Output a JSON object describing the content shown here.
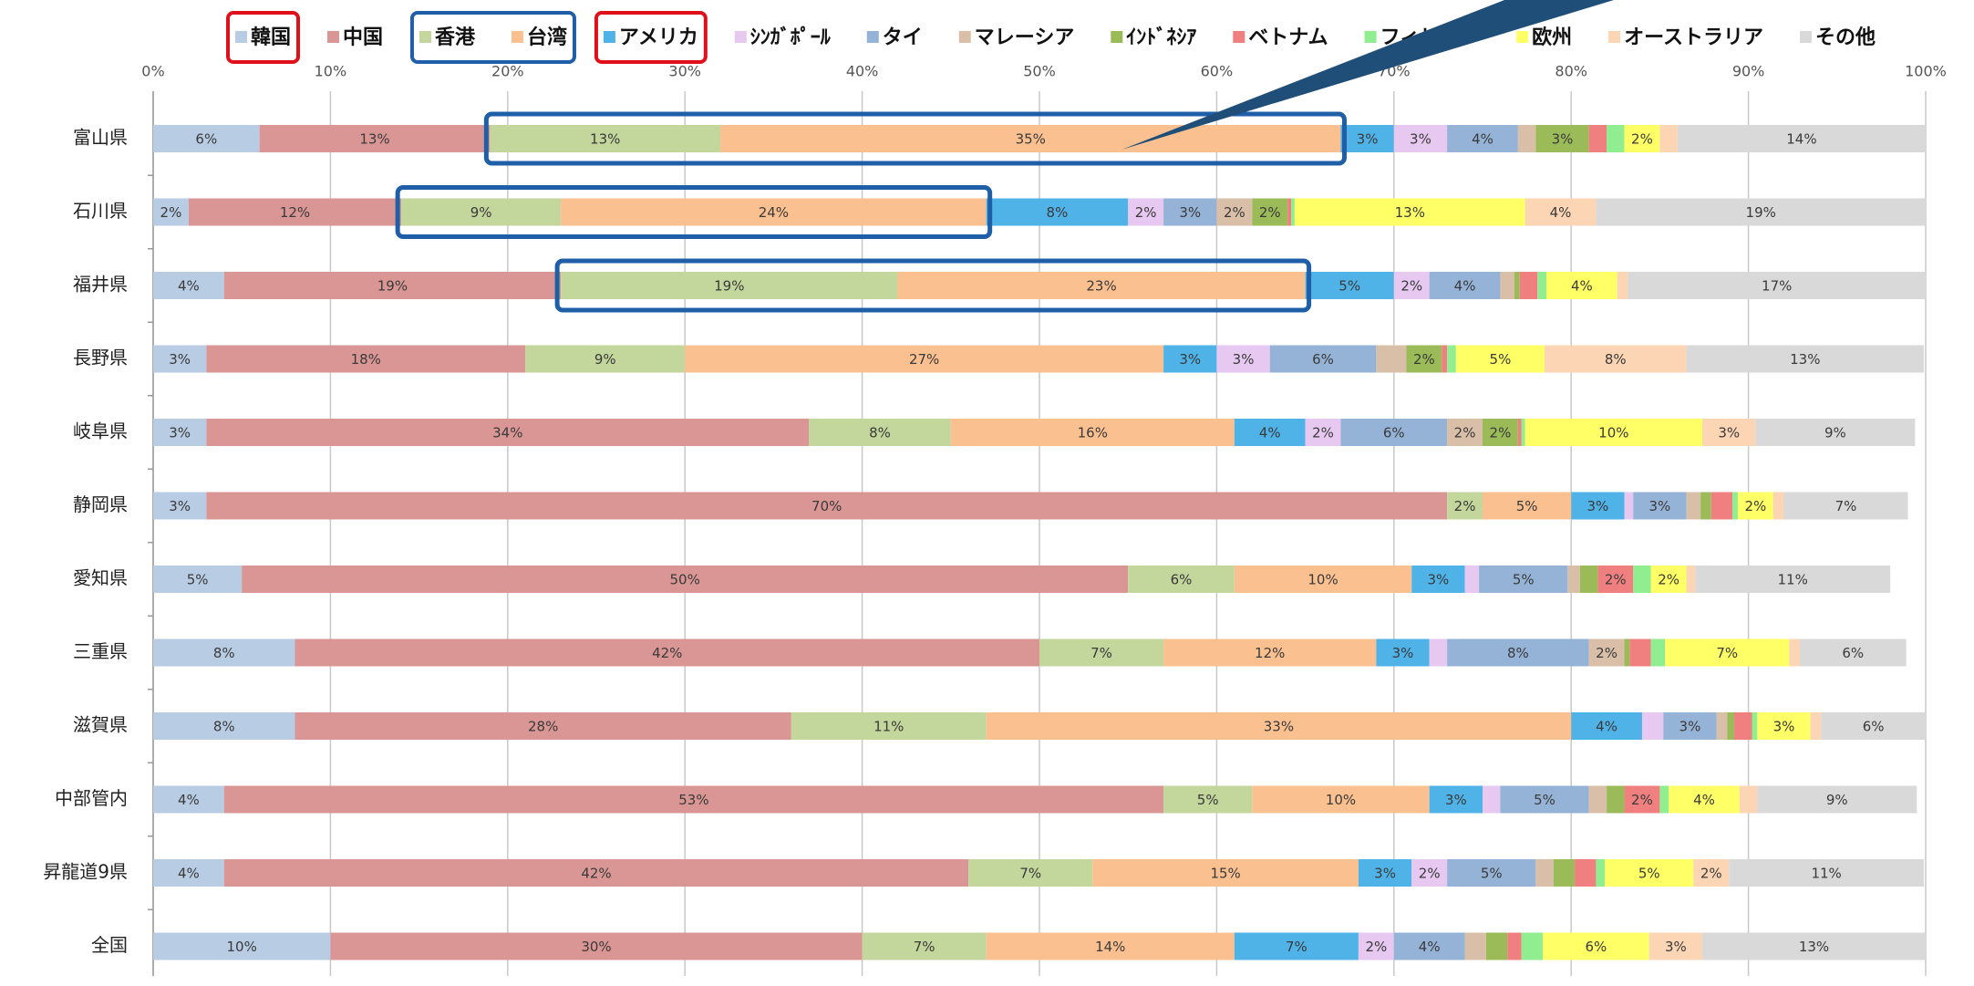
{
  "chart_data": {
    "type": "stacked_bar_horizontal",
    "categories": [
      "富山県",
      "石川県",
      "福井県",
      "長野県",
      "岐阜県",
      "静岡県",
      "愛知県",
      "三重県",
      "滋賀県",
      "中部管内",
      "昇龍道9県",
      "全国"
    ],
    "xlim": [
      0,
      100
    ],
    "xticks": [
      {
        "value": 0,
        "label": "0%"
      },
      {
        "value": 10,
        "label": "10%"
      },
      {
        "value": 20,
        "label": "20%"
      },
      {
        "value": 30,
        "label": "30%"
      },
      {
        "value": 40,
        "label": "40%"
      },
      {
        "value": 50,
        "label": "50%"
      },
      {
        "value": 60,
        "label": "60%"
      },
      {
        "value": 70,
        "label": "70%"
      },
      {
        "value": 80,
        "label": "80%"
      },
      {
        "value": 90,
        "label": "90%"
      },
      {
        "value": 100,
        "label": "100%"
      }
    ],
    "grid": true,
    "legend": "top",
    "series": [
      {
        "name": "韓国",
        "color": "#b8cce4",
        "values": [
          6,
          2,
          4,
          3,
          3,
          3,
          5,
          8,
          8,
          4,
          4,
          10
        ],
        "value_labels": [
          "6%",
          "2%",
          "4%",
          "3%",
          "3%",
          "3%",
          "5%",
          "8%",
          "8%",
          "4%",
          "4%",
          "10%"
        ]
      },
      {
        "name": "中国",
        "color": "#d99694",
        "values": [
          13,
          12,
          19,
          18,
          34,
          70,
          50,
          42,
          28,
          53,
          42,
          30
        ],
        "value_labels": [
          "13%",
          "12%",
          "19%",
          "18%",
          "34%",
          "70%",
          "50%",
          "42%",
          "28%",
          "53%",
          "42%",
          "30%"
        ]
      },
      {
        "name": "香港",
        "color": "#c3d69b",
        "values": [
          13,
          9,
          19,
          9,
          8,
          2,
          6,
          7,
          11,
          5,
          7,
          7
        ],
        "value_labels": [
          "13%",
          "9%",
          "19%",
          "9%",
          "8%",
          "2%",
          "6%",
          "7%",
          "11%",
          "5%",
          "7%",
          "7%"
        ]
      },
      {
        "name": "台湾",
        "color": "#fac090",
        "values": [
          35,
          24,
          23,
          27,
          16,
          5,
          10,
          12,
          33,
          10,
          15,
          14
        ],
        "value_labels": [
          "35%",
          "24%",
          "23%",
          "27%",
          "16%",
          "5%",
          "10%",
          "12%",
          "33%",
          "10%",
          "15%",
          "14%"
        ]
      },
      {
        "name": "アメリカ",
        "color": "#4fb3e8",
        "values": [
          3,
          8,
          5,
          3,
          4,
          3,
          3,
          3,
          4,
          3,
          3,
          7
        ],
        "value_labels": [
          "3%",
          "8%",
          "5%",
          "3%",
          "4%",
          "3%",
          "3%",
          "3%",
          "4%",
          "3%",
          "3%",
          "7%"
        ]
      },
      {
        "name": "ｼﾝｶﾞﾎﾟｰﾙ",
        "color": "#e6c8f0",
        "values": [
          3,
          2,
          2,
          3,
          2,
          0.5,
          0.8,
          1,
          1.2,
          1,
          2,
          2
        ],
        "value_labels": [
          "3%",
          "2%",
          "2%",
          "3%",
          "2%",
          null,
          null,
          null,
          null,
          null,
          "2%",
          "2%"
        ]
      },
      {
        "name": "タイ",
        "color": "#95b3d7",
        "values": [
          4,
          3,
          4,
          6,
          6,
          3,
          5,
          8,
          3,
          5,
          5,
          4
        ],
        "value_labels": [
          "4%",
          "3%",
          "4%",
          "6%",
          "6%",
          "3%",
          "5%",
          "8%",
          "3%",
          "5%",
          "5%",
          "4%"
        ]
      },
      {
        "name": "マレーシア",
        "color": "#d9bfa8",
        "values": [
          1,
          2,
          0.8,
          1.7,
          2,
          0.8,
          0.7,
          2,
          0.6,
          1,
          1,
          1.2
        ],
        "value_labels": [
          null,
          "2%",
          null,
          null,
          "2%",
          null,
          null,
          "2%",
          null,
          null,
          null,
          null
        ]
      },
      {
        "name": "ｲﾝﾄﾞﾈｼｱ",
        "color": "#9bbb59",
        "values": [
          3,
          2,
          0.3,
          2,
          2,
          0.6,
          1,
          0.3,
          0.4,
          1,
          1.2,
          1.2
        ],
        "value_labels": [
          "3%",
          "2%",
          null,
          "2%",
          "2%",
          null,
          null,
          null,
          null,
          null,
          null,
          null
        ]
      },
      {
        "name": "ベトナム",
        "color": "#f08080",
        "values": [
          1,
          0.2,
          1,
          0.3,
          0.2,
          1.2,
          2,
          1.2,
          1,
          2,
          1.2,
          0.8
        ],
        "value_labels": [
          null,
          null,
          null,
          null,
          null,
          null,
          "2%",
          null,
          null,
          "2%",
          null,
          null
        ]
      },
      {
        "name": "フィリピン",
        "color": "#90ee90",
        "values": [
          1,
          0.2,
          0.5,
          0.5,
          0.2,
          0.3,
          1,
          0.8,
          0.3,
          0.5,
          0.5,
          1.2
        ],
        "value_labels": [
          null,
          null,
          null,
          null,
          null,
          null,
          null,
          null,
          null,
          null,
          null,
          null
        ]
      },
      {
        "name": "欧州",
        "color": "#ffff66",
        "values": [
          2,
          13,
          4,
          5,
          10,
          2,
          2,
          7,
          3,
          4,
          5,
          6
        ],
        "value_labels": [
          "2%",
          "13%",
          "4%",
          "5%",
          "10%",
          "2%",
          "2%",
          "7%",
          "3%",
          "4%",
          "5%",
          "6%"
        ]
      },
      {
        "name": "オーストラリア",
        "color": "#fcd5b4",
        "values": [
          1,
          4,
          0.6,
          8,
          3,
          0.6,
          0.5,
          0.6,
          0.6,
          1,
          2,
          3
        ],
        "value_labels": [
          null,
          "4%",
          null,
          "8%",
          "3%",
          null,
          null,
          null,
          null,
          null,
          "2%",
          "3%"
        ]
      },
      {
        "name": "その他",
        "color": "#d9d9d9",
        "values": [
          14,
          18.6,
          16.8,
          13.4,
          9,
          7,
          11,
          6,
          5.9,
          9,
          11,
          12.6
        ],
        "value_labels": [
          "14%",
          "19%",
          "17%",
          "13%",
          "9%",
          "7%",
          "11%",
          "6%",
          "6%",
          "9%",
          "11%",
          "13%"
        ]
      }
    ]
  }
}
